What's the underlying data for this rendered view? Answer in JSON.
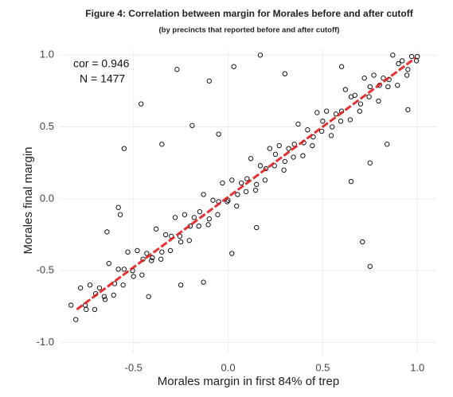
{
  "chart_data": {
    "type": "scatter",
    "title": "Figure 4: Correlation between margin for Morales before and after cutoff",
    "subtitle": "(by precincts that reported before and after cutoff)",
    "x_label": "Morales margin in first 84% of trep",
    "y_label": "Morales final margin",
    "annotations": [
      "cor = 0.946",
      "N = 1477"
    ],
    "color": "#000000",
    "grid": true,
    "xlim": [
      -0.89,
      1.1
    ],
    "ylim": [
      -1.08,
      1.04
    ],
    "xticks": [
      -0.5,
      {
        "value": 0,
        "label": "0.0"
      },
      0.5,
      {
        "value": 1,
        "label": "1.0"
      }
    ],
    "yticks": [
      {
        "value": -1,
        "label": "-1.0"
      },
      -0.5,
      {
        "value": 0,
        "label": "0.0"
      },
      0.5,
      {
        "value": 1,
        "label": "1.0"
      }
    ],
    "fit_line": {
      "color": "#e41a1c",
      "x": [
        -0.8,
        0.99
      ],
      "y": [
        -0.77,
        0.98
      ]
    },
    "x": [
      -0.83,
      -0.805,
      -0.78,
      -0.755,
      -0.73,
      -0.705,
      -0.68,
      -0.655,
      -0.63,
      -0.605,
      -0.58,
      -0.555,
      -0.53,
      -0.505,
      -0.48,
      -0.455,
      -0.43,
      -0.405,
      -0.38,
      -0.355,
      -0.33,
      -0.305,
      -0.28,
      -0.255,
      -0.23,
      -0.205,
      -0.18,
      -0.155,
      -0.13,
      -0.105,
      -0.08,
      -0.055,
      -0.03,
      -0.005,
      0.02,
      0.045,
      0.07,
      0.095,
      0.12,
      0.145,
      0.17,
      0.195,
      0.22,
      0.245,
      0.27,
      0.295,
      0.32,
      0.345,
      0.37,
      0.395,
      0.42,
      0.445,
      0.47,
      0.495,
      0.52,
      0.545,
      0.57,
      0.595,
      0.62,
      0.645,
      0.67,
      0.695,
      0.72,
      0.745,
      0.77,
      0.795,
      0.82,
      0.845,
      0.87,
      0.895,
      0.92,
      0.945,
      0.97,
      0.995,
      -0.75,
      -0.7,
      -0.65,
      -0.6,
      -0.55,
      -0.5,
      -0.45,
      -0.4,
      -0.35,
      -0.3,
      -0.25,
      -0.2,
      -0.15,
      -0.1,
      -0.05,
      0,
      0.05,
      0.1,
      0.15,
      0.2,
      0.25,
      0.3,
      0.35,
      0.4,
      0.45,
      0.5,
      0.55,
      0.6,
      0.65,
      0.7,
      0.75,
      0.8,
      0.85,
      0.9,
      0.95,
      1,
      -0.27,
      -0.46,
      -0.55,
      -0.58,
      -0.57,
      -0.64,
      -0.1,
      0.03,
      0.17,
      0.3,
      -0.19,
      0.6,
      0.84,
      0.75,
      0.71,
      0.65,
      0.75,
      -0.35,
      -0.13,
      -0.25,
      -0.42,
      0.15,
      0.02,
      0.95,
      -0.05
    ],
    "y": [
      -0.74,
      -0.84,
      -0.62,
      -0.74,
      -0.6,
      -0.77,
      -0.62,
      -0.68,
      -0.45,
      -0.67,
      -0.49,
      -0.6,
      -0.37,
      -0.5,
      -0.36,
      -0.53,
      -0.38,
      -0.43,
      -0.21,
      -0.42,
      -0.25,
      -0.36,
      -0.13,
      -0.26,
      -0.11,
      -0.29,
      -0.13,
      -0.19,
      0.03,
      -0.18,
      -0.01,
      -0.11,
      0.11,
      -0.02,
      0.13,
      -0.05,
      0.11,
      0.05,
      0.28,
      0.06,
      0.23,
      0.13,
      0.35,
      0.23,
      0.37,
      0.2,
      0.35,
      0.29,
      0.52,
      0.3,
      0.48,
      0.37,
      0.6,
      0.47,
      0.61,
      0.44,
      0.59,
      0.54,
      0.76,
      0.55,
      0.72,
      0.61,
      0.84,
      0.71,
      0.86,
      0.68,
      0.84,
      0.78,
      1,
      0.79,
      0.96,
      0.86,
      0.99,
      0.96,
      -0.77,
      -0.66,
      -0.7,
      -0.59,
      -0.49,
      -0.54,
      -0.42,
      -0.41,
      -0.37,
      -0.26,
      -0.3,
      -0.19,
      -0.09,
      -0.14,
      -0.02,
      -0.01,
      0.03,
      0.14,
      0.1,
      0.21,
      0.31,
      0.26,
      0.38,
      0.39,
      0.43,
      0.54,
      0.5,
      0.61,
      0.71,
      0.66,
      0.78,
      0.79,
      0.83,
      0.94,
      0.9,
      0.99,
      0.9,
      0.66,
      0.35,
      -0.06,
      -0.11,
      -0.23,
      0.82,
      0.92,
      1,
      0.87,
      0.51,
      0.92,
      0.38,
      -0.47,
      -0.3,
      0.12,
      0.25,
      0.38,
      -0.58,
      -0.6,
      -0.68,
      -0.2,
      -0.38,
      0.62,
      0.45
    ]
  }
}
